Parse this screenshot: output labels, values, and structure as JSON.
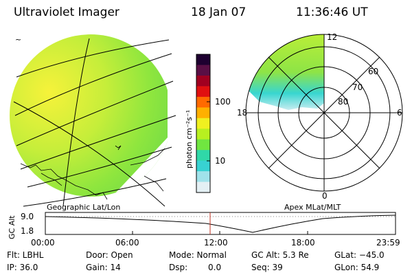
{
  "header": {
    "title": "Ultraviolet Imager",
    "date": "18 Jan 07",
    "time": "11:36:46 UT"
  },
  "colorbar": {
    "unit_label": "photon cm⁻²s⁻¹",
    "ticks": [
      "100",
      "10"
    ],
    "colors": [
      "#1e0030",
      "#5a0f45",
      "#a00020",
      "#e01010",
      "#ff6a00",
      "#ffb000",
      "#f0f020",
      "#b8f020",
      "#70e640",
      "#30d8a8",
      "#38d2d2",
      "#a0e2ea",
      "#e4f0f4"
    ]
  },
  "left_panel": {
    "caption": "Geographic Lat/Lon",
    "corner_mark": "~"
  },
  "right_panel": {
    "caption": "Apex MLat/MLT",
    "mlt_labels": [
      "12",
      "18",
      "6",
      "0"
    ],
    "lat_labels": [
      "60",
      "70",
      "80"
    ]
  },
  "altitude_strip": {
    "axis_label": "GC Alt",
    "y_labels": [
      "9.0",
      "1.8"
    ],
    "x_labels": [
      "00:00",
      "06:00",
      "12:00",
      "18:00",
      "23:59"
    ],
    "current_time_marker": "12:00"
  },
  "info": {
    "flt": "Flt: LBHL",
    "ip": "IP: 36.0",
    "door": "Door: Open",
    "gain": "Gain: 14",
    "mode": "Mode: Normal",
    "dsp": "Dsp:",
    "dsp_value": "0.0",
    "gc_alt": "GC Alt: 5.3 Re",
    "seq": "Seq: 39",
    "glat": "GLat: −45.0",
    "glon": "GLon:  54.9"
  }
}
